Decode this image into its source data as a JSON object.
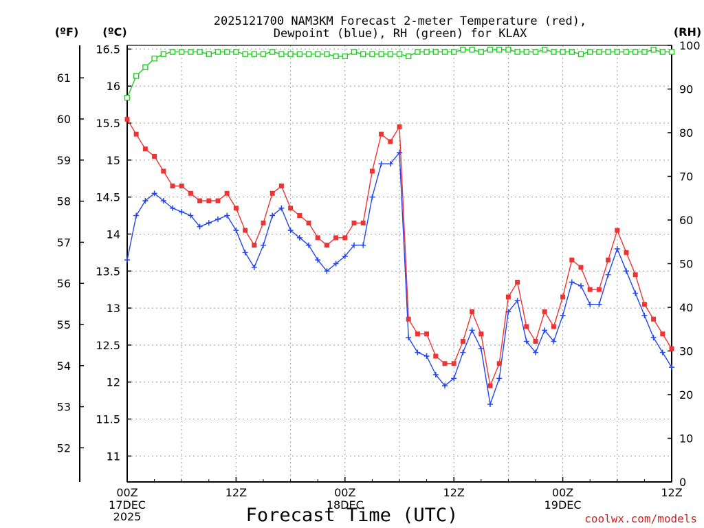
{
  "chart_data": {
    "type": "line",
    "title_line1": "2025121700 NAM3KM Forecast 2-meter Temperature (red),",
    "title_line2": "Dewpoint (blue), RH (green) for KLAX",
    "xlabel": "Forecast Time (UTC)",
    "credit": "coolwx.com/models",
    "units": {
      "fahrenheit": "(ºF)",
      "celsius": "(ºC)",
      "rh": "(RH)"
    },
    "x_range_hours": [
      0,
      60
    ],
    "celsius_axis": {
      "ylim": [
        10.65,
        16.55
      ],
      "ticks": [
        11,
        11.5,
        12,
        12.5,
        13,
        13.5,
        14,
        14.5,
        15,
        15.5,
        16,
        16.5
      ],
      "tick_labels": [
        "11",
        "11.5",
        "12",
        "12.5",
        "13",
        "13.5",
        "14",
        "14.5",
        "15",
        "15.5",
        "16",
        "16.5"
      ]
    },
    "fahrenheit_axis": {
      "ticks": [
        52,
        53,
        54,
        55,
        56,
        57,
        58,
        59,
        60,
        61
      ],
      "tick_labels": [
        "52",
        "53",
        "54",
        "55",
        "56",
        "57",
        "58",
        "59",
        "60",
        "61"
      ]
    },
    "rh_axis": {
      "ylim": [
        0,
        100
      ],
      "ticks": [
        0,
        10,
        20,
        30,
        40,
        50,
        60,
        70,
        80,
        90,
        100
      ],
      "tick_labels": [
        "0",
        "10",
        "20",
        "30",
        "40",
        "50",
        "60",
        "70",
        "80",
        "90",
        "100"
      ]
    },
    "x_ticks": [
      {
        "hour": 0,
        "line1": "00Z",
        "line2": "17DEC",
        "line3": "2025"
      },
      {
        "hour": 12,
        "line1": "12Z",
        "line2": "",
        "line3": ""
      },
      {
        "hour": 24,
        "line1": "00Z",
        "line2": "18DEC",
        "line3": ""
      },
      {
        "hour": 36,
        "line1": "12Z",
        "line2": "",
        "line3": ""
      },
      {
        "hour": 48,
        "line1": "00Z",
        "line2": "19DEC",
        "line3": ""
      },
      {
        "hour": 60,
        "line1": "12Z",
        "line2": "",
        "line3": ""
      }
    ],
    "hours": [
      0,
      1,
      2,
      3,
      4,
      5,
      6,
      7,
      8,
      9,
      10,
      11,
      12,
      13,
      14,
      15,
      16,
      17,
      18,
      19,
      20,
      21,
      22,
      23,
      24,
      25,
      26,
      27,
      28,
      29,
      30,
      31,
      32,
      33,
      34,
      35,
      36,
      37,
      38,
      39,
      40,
      41,
      42,
      43,
      44,
      45,
      46,
      47,
      48,
      49,
      50,
      51,
      52,
      53,
      54,
      55,
      56,
      57,
      58,
      59,
      60
    ],
    "series": [
      {
        "name": "Temperature",
        "axis": "celsius",
        "color": "#ee3333",
        "marker": "filled-square",
        "values": [
          15.55,
          15.35,
          15.15,
          15.05,
          14.85,
          14.65,
          14.65,
          14.55,
          14.45,
          14.45,
          14.45,
          14.55,
          14.35,
          14.05,
          13.85,
          14.15,
          14.55,
          14.65,
          14.35,
          14.25,
          14.15,
          13.95,
          13.85,
          13.95,
          13.95,
          14.15,
          14.15,
          14.85,
          15.35,
          15.25,
          15.45,
          12.85,
          12.65,
          12.65,
          12.35,
          12.25,
          12.25,
          12.55,
          12.95,
          12.65,
          11.95,
          12.25,
          13.15,
          13.35,
          12.75,
          12.55,
          12.95,
          12.75,
          13.15,
          13.65,
          13.55,
          13.25,
          13.25,
          13.65,
          14.05,
          13.75,
          13.45,
          13.05,
          12.85,
          12.65,
          12.45
        ]
      },
      {
        "name": "Dewpoint",
        "axis": "celsius",
        "color": "#2244ee",
        "marker": "plus",
        "values": [
          13.65,
          14.25,
          14.45,
          14.55,
          14.45,
          14.35,
          14.3,
          14.25,
          14.1,
          14.15,
          14.2,
          14.25,
          14.05,
          13.75,
          13.55,
          13.85,
          14.25,
          14.35,
          14.05,
          13.95,
          13.85,
          13.65,
          13.5,
          13.6,
          13.7,
          13.85,
          13.85,
          14.5,
          14.95,
          14.95,
          15.1,
          12.6,
          12.4,
          12.35,
          12.1,
          11.95,
          12.05,
          12.4,
          12.7,
          12.45,
          11.7,
          12.05,
          12.95,
          13.1,
          12.55,
          12.4,
          12.7,
          12.55,
          12.9,
          13.35,
          13.3,
          13.05,
          13.05,
          13.45,
          13.8,
          13.5,
          13.2,
          12.9,
          12.6,
          12.4,
          12.2
        ]
      },
      {
        "name": "RH",
        "axis": "rh",
        "color": "#22cc22",
        "marker": "open-square",
        "values": [
          88,
          93,
          95,
          97,
          98,
          98.5,
          98.5,
          98.5,
          98.5,
          98,
          98.5,
          98.5,
          98.5,
          98,
          98,
          98,
          98.5,
          98,
          98,
          98,
          98,
          98,
          98,
          97.5,
          97.5,
          98.5,
          98,
          98,
          98,
          98,
          98,
          97.5,
          98.5,
          98.5,
          98.5,
          98.5,
          98.5,
          99,
          99,
          98.5,
          99,
          99,
          99,
          98.5,
          98.5,
          98.5,
          99,
          98.5,
          98.5,
          98.5,
          98,
          98.5,
          98.5,
          98.5,
          98.5,
          98.5,
          98.5,
          98.5,
          99,
          98.5,
          98.5
        ]
      }
    ]
  }
}
